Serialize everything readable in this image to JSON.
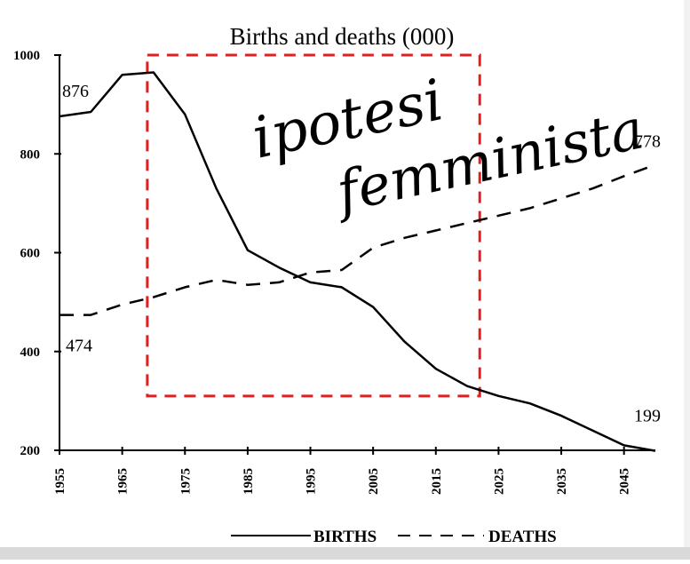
{
  "chart_data": {
    "type": "line",
    "title": "Births and deaths (000)",
    "xlabel": "",
    "ylabel": "",
    "xlim": [
      1955,
      2050
    ],
    "ylim": [
      200,
      1000
    ],
    "x_ticks": [
      "1955",
      "1965",
      "1975",
      "1985",
      "1995",
      "2005",
      "2015",
      "2025",
      "2035",
      "2045"
    ],
    "y_ticks": [
      "200",
      "400",
      "600",
      "800",
      "1000"
    ],
    "grid": false,
    "legend_position": "bottom-center",
    "series": [
      {
        "name": "BIRTHS",
        "style": "solid",
        "x": [
          1955,
          1960,
          1965,
          1970,
          1975,
          1980,
          1985,
          1990,
          1995,
          2000,
          2005,
          2010,
          2015,
          2020,
          2025,
          2030,
          2035,
          2040,
          2045,
          2050
        ],
        "y": [
          876,
          885,
          960,
          965,
          880,
          730,
          605,
          570,
          540,
          530,
          490,
          420,
          365,
          330,
          310,
          295,
          270,
          240,
          210,
          199
        ]
      },
      {
        "name": "DEATHS",
        "style": "dashed",
        "x": [
          1955,
          1960,
          1965,
          1970,
          1975,
          1980,
          1985,
          1990,
          1995,
          2000,
          2005,
          2010,
          2015,
          2020,
          2025,
          2030,
          2035,
          2040,
          2045,
          2050
        ],
        "y": [
          474,
          474,
          495,
          510,
          530,
          545,
          535,
          540,
          560,
          565,
          610,
          630,
          645,
          660,
          675,
          690,
          710,
          730,
          755,
          778
        ]
      }
    ],
    "annotations": [
      {
        "text": "876",
        "anchor": "BIRTHS start"
      },
      {
        "text": "474",
        "anchor": "DEATHS start"
      },
      {
        "text": "778",
        "anchor": "DEATHS end"
      },
      {
        "text": "199",
        "anchor": "BIRTHS end"
      }
    ],
    "highlight_box": {
      "x_range": [
        1969,
        2022
      ],
      "y_range": [
        310,
        1000
      ],
      "color": "#e02020",
      "style": "dashed"
    },
    "handwritten_note": [
      "ipotesi",
      "femminista"
    ]
  }
}
